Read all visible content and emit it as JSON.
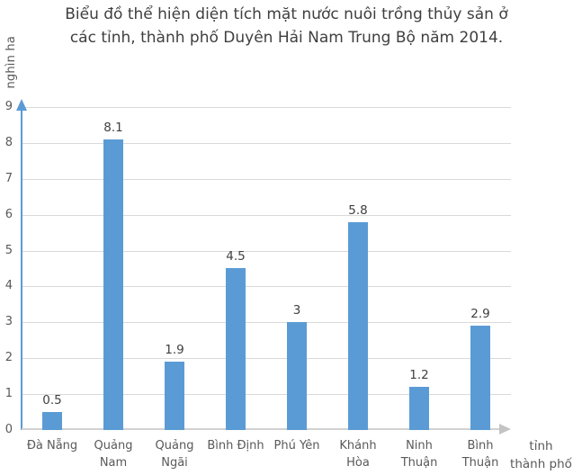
{
  "chart_data": {
    "type": "bar",
    "title": "Biểu đồ thể hiện diện tích mặt nước nuôi trồng thủy sản ở các tỉnh, thành phố Duyên Hải Nam Trung Bộ năm 2014.",
    "title_lines": [
      "Biểu đồ thể hiện diện tích mặt nước nuôi trồng thủy sản ở",
      "các tỉnh, thành phố Duyên Hải Nam Trung Bộ năm 2014."
    ],
    "ylabel": "nghìn ha",
    "xlabel": "tỉnh thành phố",
    "xlabel_lines": [
      "tỉnh",
      "thành phố"
    ],
    "categories": [
      "Đà Nẵng",
      "Quảng Nam",
      "Quảng Ngãi",
      "Bình Định",
      "Phú Yên",
      "Khánh Hòa",
      "Ninh Thuận",
      "Bình Thuận"
    ],
    "categories_display": [
      "Đà Nẵng",
      "Quảng\nNam",
      "Quảng\nNgãi",
      "Bình Định",
      "Phú Yên",
      "Khánh Hòa",
      "Ninh\nThuận",
      "Bình\nThuận"
    ],
    "values": [
      0.5,
      8.1,
      1.9,
      4.5,
      3,
      5.8,
      1.2,
      2.9
    ],
    "value_labels": [
      "0.5",
      "8.1",
      "1.9",
      "4.5",
      "3",
      "5.8",
      "1.2",
      "2.9"
    ],
    "y_ticks": [
      0,
      1,
      2,
      3,
      4,
      5,
      6,
      7,
      8,
      9
    ],
    "ylim": [
      0,
      9
    ],
    "grid": true,
    "legend": false
  },
  "colors": {
    "bar": "#5B9BD5",
    "y_axis": "#5B9BD5",
    "x_axis": "#D2D2D2",
    "x_axis_arrow": "#C4C4C4",
    "gridline": "#D9D9D9",
    "title_text": "#3F3F3F",
    "axis_text": "#595959",
    "value_text": "#404040"
  }
}
